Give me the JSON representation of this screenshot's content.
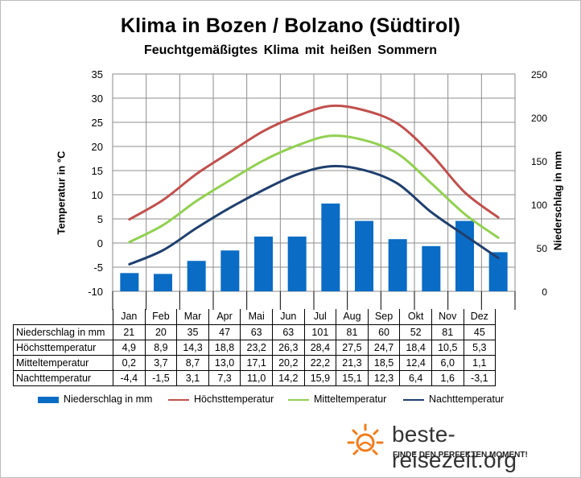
{
  "header": {
    "title": "Klima in Bozen / Bolzano (Südtirol)",
    "subtitle": "Feuchtgemäßigtes  Klima mit heißen Sommern"
  },
  "axes": {
    "left_label": "Temperatur in °C",
    "right_label": "Niederschlag in mm",
    "left_ticks": [
      "35",
      "30",
      "25",
      "20",
      "15",
      "10",
      "5",
      "0",
      "-5",
      "-10"
    ],
    "right_ticks": [
      "250",
      "200",
      "150",
      "100",
      "50",
      "0"
    ]
  },
  "chart_data": {
    "type": "bar",
    "categories": [
      "Jan",
      "Feb",
      "Mar",
      "Apr",
      "Mai",
      "Jun",
      "Jul",
      "Aug",
      "Sep",
      "Okt",
      "Nov",
      "Dez"
    ],
    "y_left_lim": [
      -10,
      35
    ],
    "y_right_lim": [
      0,
      250
    ],
    "grid": true,
    "legend_position": "bottom",
    "series": [
      {
        "name": "Niederschlag in mm",
        "kind": "bar",
        "axis": "right",
        "color": "#0a6cc4",
        "values": [
          21,
          20,
          35,
          47,
          63,
          63,
          101,
          81,
          60,
          52,
          81,
          45
        ]
      },
      {
        "name": "Höchsttemperatur",
        "kind": "line",
        "axis": "left",
        "color": "#c0504d",
        "values": [
          4.9,
          8.9,
          14.3,
          18.8,
          23.2,
          26.3,
          28.4,
          27.5,
          24.7,
          18.4,
          10.5,
          5.3
        ]
      },
      {
        "name": "Mitteltemperatur",
        "kind": "line",
        "axis": "left",
        "color": "#92d050",
        "values": [
          0.2,
          3.7,
          8.7,
          13.0,
          17.1,
          20.2,
          22.2,
          21.3,
          18.5,
          12.4,
          6.0,
          1.1
        ]
      },
      {
        "name": "Nachttemperatur",
        "kind": "line",
        "axis": "left",
        "color": "#1f3f6e",
        "values": [
          -4.4,
          -1.5,
          3.1,
          7.3,
          11.0,
          14.2,
          15.9,
          15.1,
          12.3,
          6.4,
          1.6,
          -3.1
        ]
      }
    ]
  },
  "table": {
    "months": [
      "Jan",
      "Feb",
      "Mar",
      "Apr",
      "Mai",
      "Jun",
      "Jul",
      "Aug",
      "Sep",
      "Okt",
      "Nov",
      "Dez"
    ],
    "rows": [
      {
        "label": "Niederschlag in mm",
        "cells": [
          "21",
          "20",
          "35",
          "47",
          "63",
          "63",
          "101",
          "81",
          "60",
          "52",
          "81",
          "45"
        ]
      },
      {
        "label": "Höchsttemperatur",
        "cells": [
          "4,9",
          "8,9",
          "14,3",
          "18,8",
          "23,2",
          "26,3",
          "28,4",
          "27,5",
          "24,7",
          "18,4",
          "10,5",
          "5,3"
        ]
      },
      {
        "label": "Mitteltemperatur",
        "cells": [
          "0,2",
          "3,7",
          "8,7",
          "13,0",
          "17,1",
          "20,2",
          "22,2",
          "21,3",
          "18,5",
          "12,4",
          "6,0",
          "1,1"
        ]
      },
      {
        "label": "Nachttemperatur",
        "cells": [
          "-4,4",
          "-1,5",
          "3,1",
          "7,3",
          "11,0",
          "14,2",
          "15,9",
          "15,1",
          "12,3",
          "6,4",
          "1,6",
          "-3,1"
        ]
      }
    ]
  },
  "legend": {
    "items": [
      {
        "label": "Niederschlag in mm",
        "kind": "bar",
        "color": "#0a6cc4"
      },
      {
        "label": "Höchsttemperatur",
        "kind": "line",
        "color": "#c0504d"
      },
      {
        "label": "Mitteltemperatur",
        "kind": "line",
        "color": "#92d050"
      },
      {
        "label": "Nachttemperatur",
        "kind": "line",
        "color": "#1f3f6e"
      }
    ]
  },
  "logo": {
    "brand": "beste-reisezeit.org",
    "tagline": "FINDE DEN PERFEKTEN MOMENT!",
    "icon": "sun-icon",
    "color": "#f07c1a"
  }
}
